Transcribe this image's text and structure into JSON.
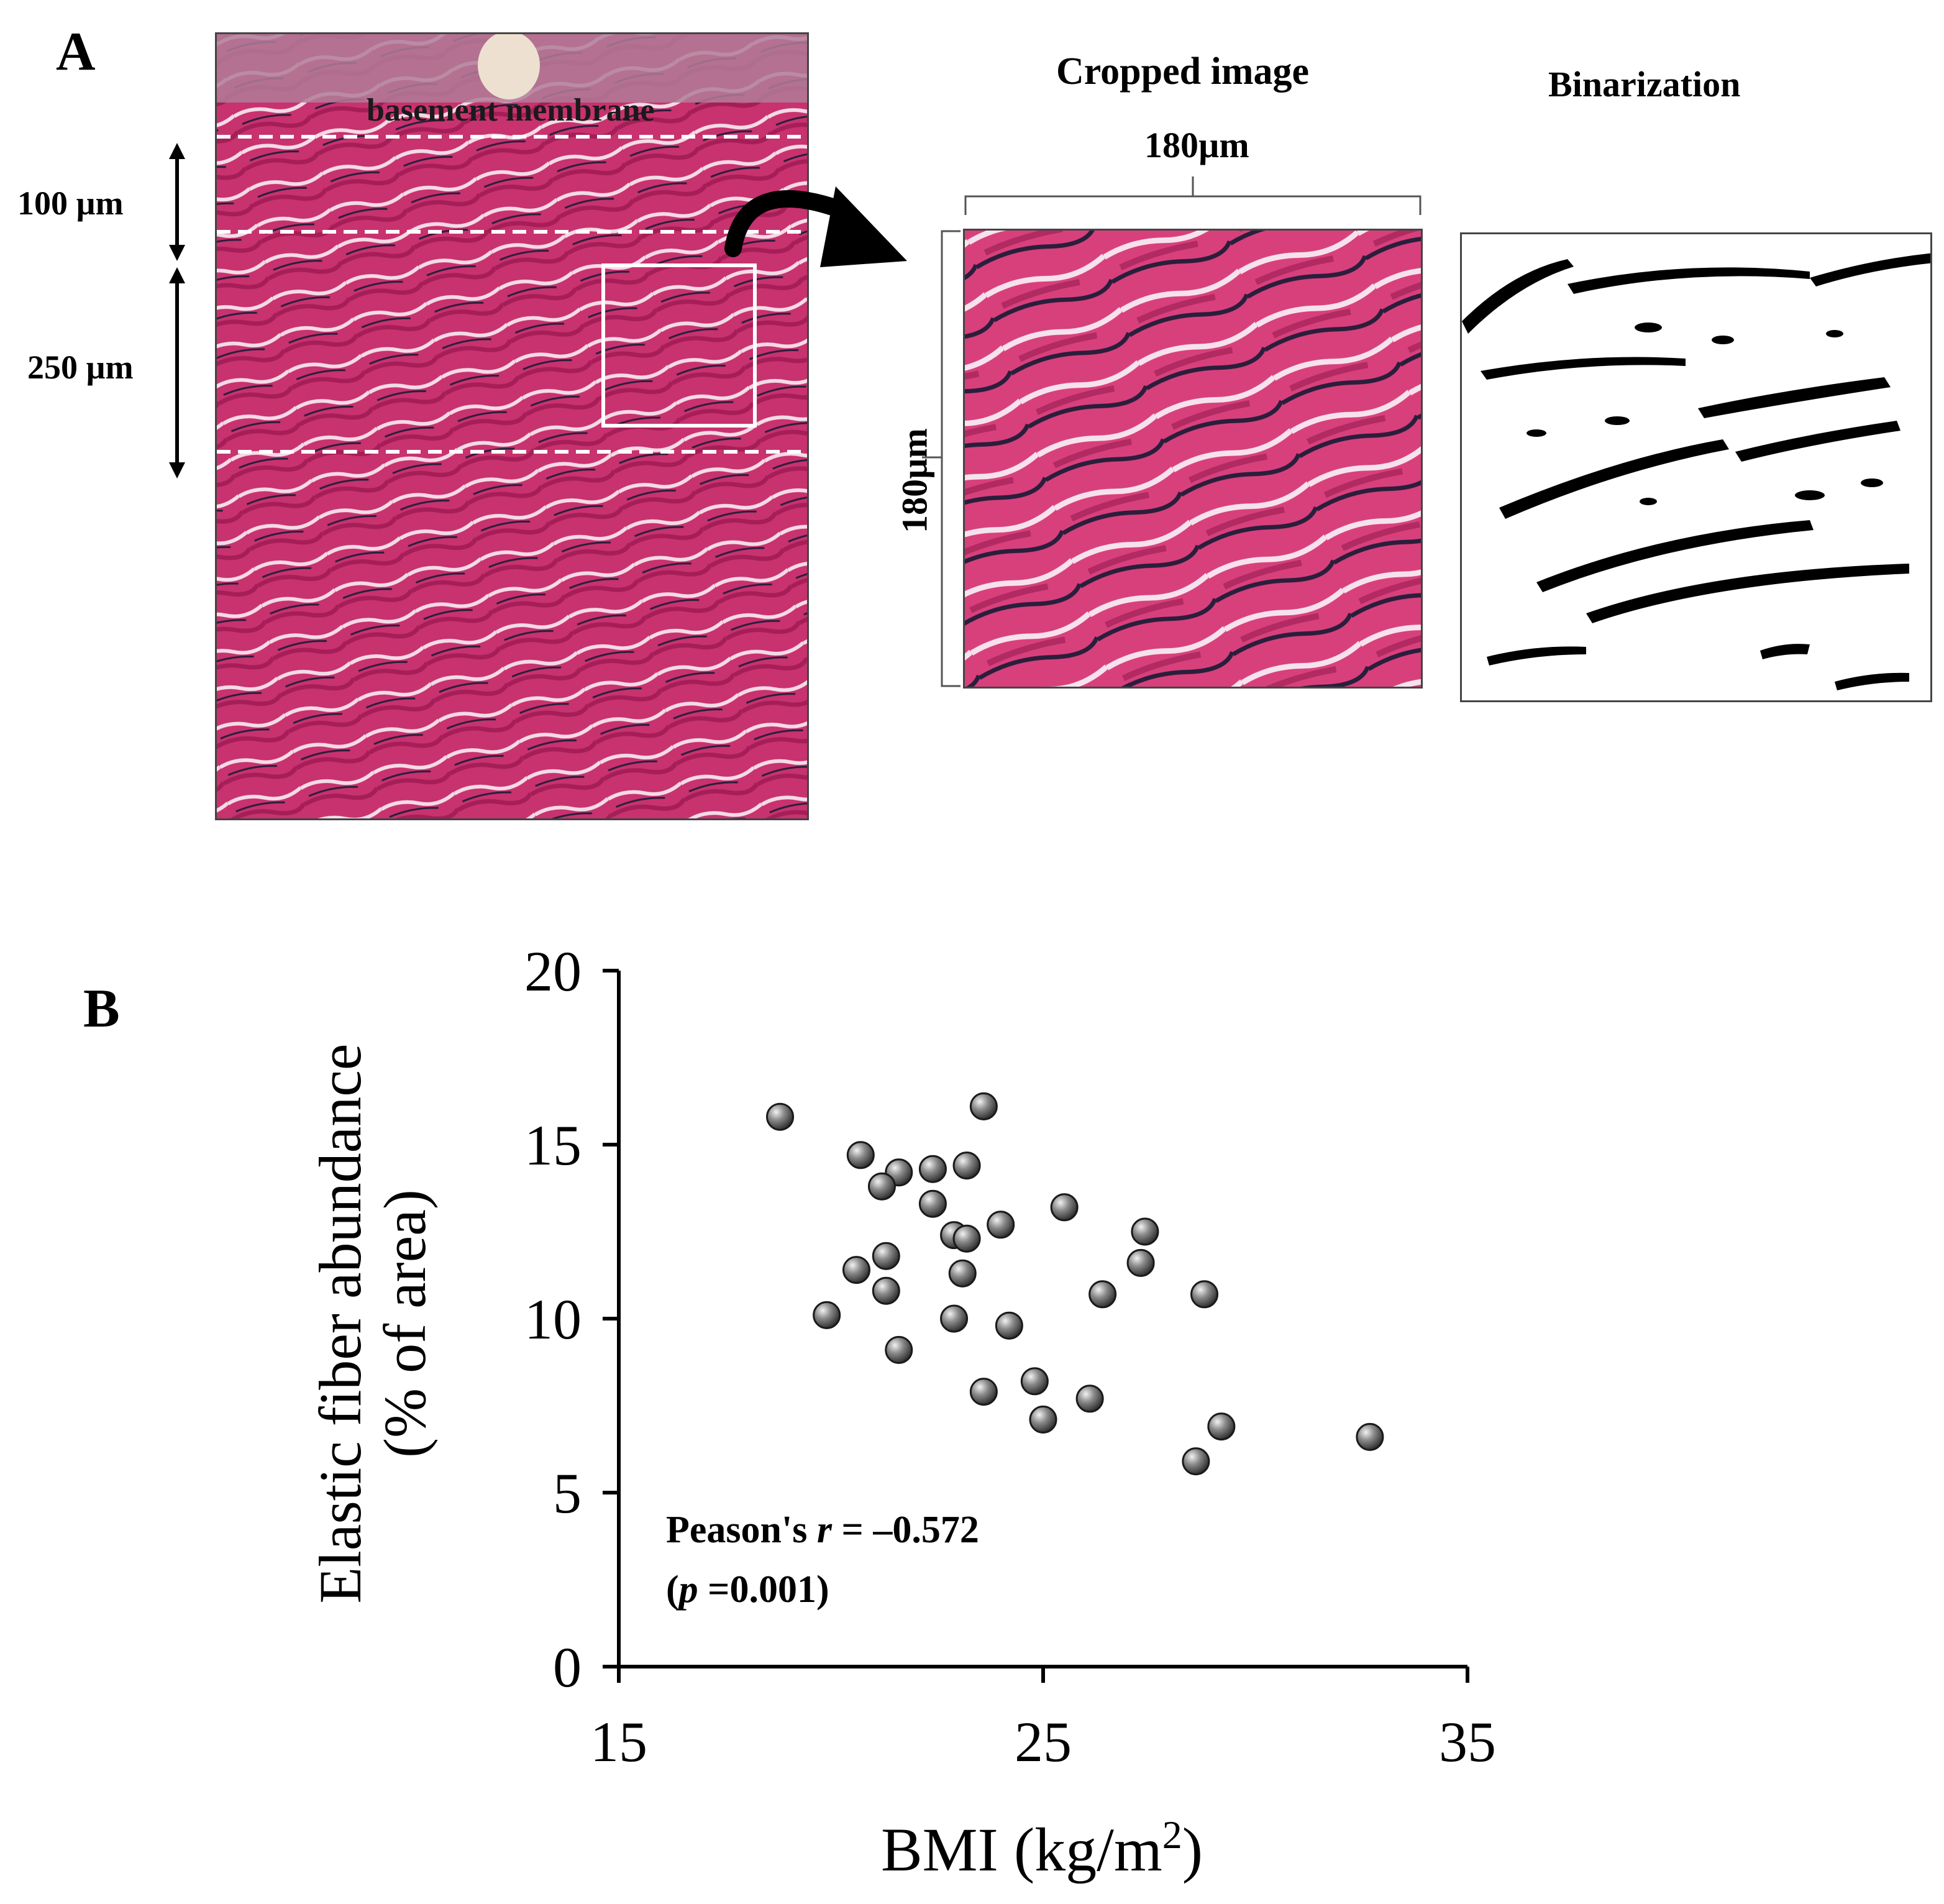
{
  "panel_a": {
    "letter": "A",
    "basement_label": "basement membrane",
    "depth_label_1": "100 µm",
    "depth_label_2": "250 µm",
    "cropped_title": "Cropped image",
    "binarization_title": "Binarization",
    "width_label": "180µm",
    "height_label": "180µm",
    "colors": {
      "tissue": "#c8326e",
      "fiber": "#2a1e3c",
      "binary_fiber": "#000000"
    }
  },
  "panel_b": {
    "letter": "B",
    "stat_line1_prefix": "Peason's ",
    "stat_line1_r": "r",
    "stat_line1_suffix": " = –0.572",
    "stat_line2_open": "(",
    "stat_line2_p": "p",
    "stat_line2_rest": " =0.001)"
  },
  "chart_data": {
    "type": "scatter",
    "xlabel": "BMI (kg/m2)",
    "ylabel": "Elastic fiber abundance (% of area)",
    "xlim": [
      15,
      35
    ],
    "ylim": [
      0,
      20
    ],
    "xticks": [
      "15",
      "25",
      "35"
    ],
    "yticks": [
      "0",
      "5",
      "10",
      "15",
      "20"
    ],
    "grid": false,
    "marker_color": "#8a8a8a",
    "points": [
      {
        "x": 18.8,
        "y": 15.8
      },
      {
        "x": 20.7,
        "y": 14.7
      },
      {
        "x": 21.6,
        "y": 14.2
      },
      {
        "x": 21.2,
        "y": 13.8
      },
      {
        "x": 22.4,
        "y": 14.3
      },
      {
        "x": 23.2,
        "y": 14.4
      },
      {
        "x": 23.6,
        "y": 16.1
      },
      {
        "x": 22.4,
        "y": 13.3
      },
      {
        "x": 25.5,
        "y": 13.2
      },
      {
        "x": 24.0,
        "y": 12.7
      },
      {
        "x": 22.9,
        "y": 12.4
      },
      {
        "x": 23.2,
        "y": 12.3
      },
      {
        "x": 27.4,
        "y": 12.5
      },
      {
        "x": 27.3,
        "y": 11.6
      },
      {
        "x": 21.3,
        "y": 11.8
      },
      {
        "x": 20.6,
        "y": 11.4
      },
      {
        "x": 23.1,
        "y": 11.3
      },
      {
        "x": 21.3,
        "y": 10.8
      },
      {
        "x": 26.4,
        "y": 10.7
      },
      {
        "x": 28.8,
        "y": 10.7
      },
      {
        "x": 19.9,
        "y": 10.1
      },
      {
        "x": 22.9,
        "y": 10.0
      },
      {
        "x": 24.2,
        "y": 9.8
      },
      {
        "x": 21.6,
        "y": 9.1
      },
      {
        "x": 24.8,
        "y": 8.2
      },
      {
        "x": 23.6,
        "y": 7.9
      },
      {
        "x": 26.1,
        "y": 7.7
      },
      {
        "x": 25.0,
        "y": 7.1
      },
      {
        "x": 29.2,
        "y": 6.9
      },
      {
        "x": 32.7,
        "y": 6.6
      },
      {
        "x": 28.6,
        "y": 5.9
      }
    ]
  }
}
